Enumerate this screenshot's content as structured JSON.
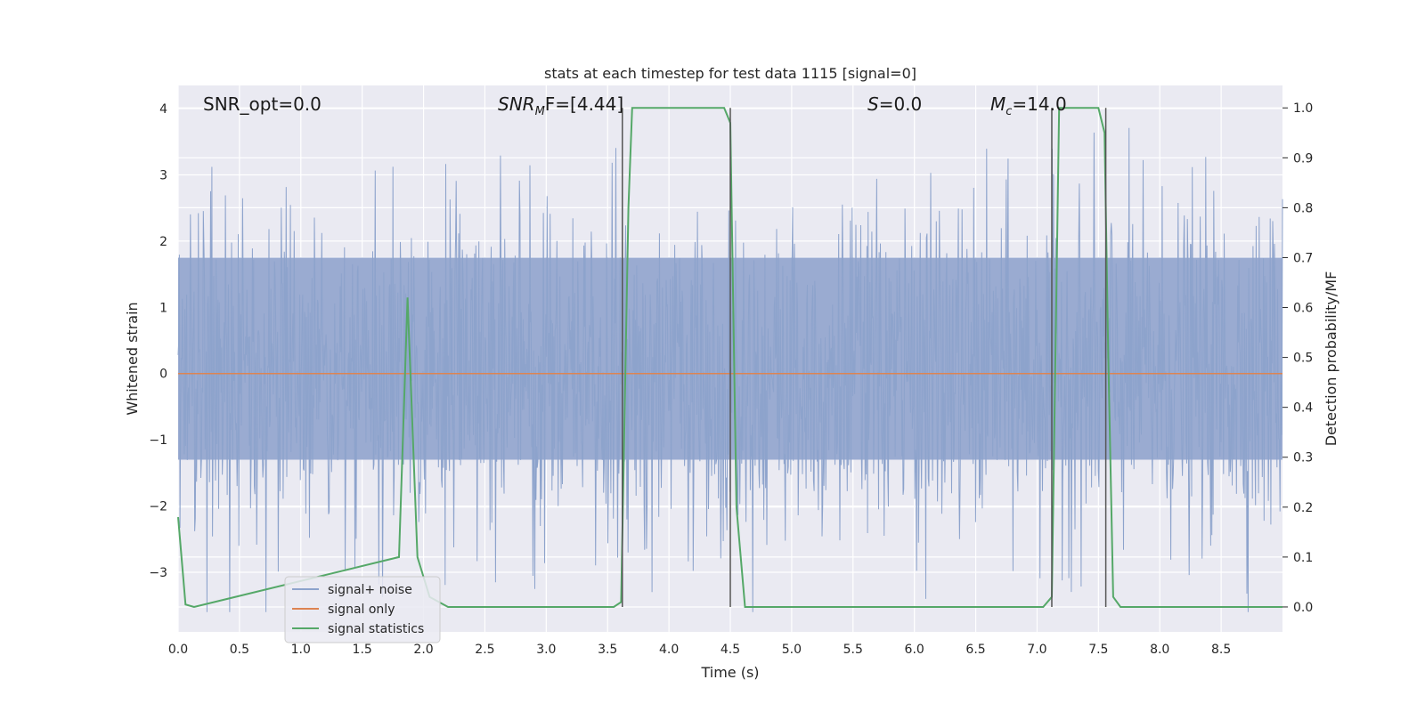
{
  "chart_data": {
    "type": "line",
    "title": "stats at each timestep for test data 1115 [signal=0]",
    "xlabel": "Time (s)",
    "ylabel_left": "Whitened strain",
    "ylabel_right": "Detection probability/MF",
    "xlim": [
      0,
      9.0
    ],
    "ylim_left": [
      -3.9,
      4.35
    ],
    "ylim_right": [
      -0.05,
      1.045
    ],
    "grid": true,
    "legend_position": "lower-left",
    "x_tick_labels": [
      "0.0",
      "0.5",
      "1.0",
      "1.5",
      "2.0",
      "2.5",
      "3.0",
      "3.5",
      "4.0",
      "4.5",
      "5.0",
      "5.5",
      "6.0",
      "6.5",
      "7.0",
      "7.5",
      "8.0",
      "8.5"
    ],
    "y_left_tick_labels": [
      "−3",
      "−2",
      "−1",
      "0",
      "1",
      "2",
      "3",
      "4"
    ],
    "y_right_tick_labels": [
      "0.0",
      "0.1",
      "0.2",
      "0.3",
      "0.4",
      "0.5",
      "0.6",
      "0.7",
      "0.8",
      "0.9",
      "1.0"
    ],
    "annotations": {
      "snr_opt": "SNR_opt=0.0",
      "snr_mf_main": "SNR",
      "snr_mf_sub": "M",
      "snr_mf_rest": "F=[4.44]",
      "s_main": "S",
      "s_rest": "=0.0",
      "mc_main": "M",
      "mc_sub": "c",
      "mc_rest": "=14.0"
    },
    "series": [
      {
        "name": "signal+ noise",
        "color": "#8da3cc",
        "axis": "left",
        "description_level": "noise amplitude approx ±2.4"
      },
      {
        "name": "signal only",
        "color": "#dd8452",
        "axis": "left",
        "x": [
          0,
          9.0
        ],
        "y": [
          0,
          0
        ]
      },
      {
        "name": "signal statistics",
        "color": "#55a868",
        "axis": "right",
        "x": [
          0,
          0.06,
          0.13,
          1.8,
          1.87,
          1.95,
          2.05,
          2.2,
          3.55,
          3.61,
          3.67,
          3.7,
          4.45,
          4.5,
          4.55,
          4.62,
          4.8,
          7.05,
          7.12,
          7.18,
          7.5,
          7.55,
          7.58,
          7.62,
          7.68,
          9.0
        ],
        "y": [
          0.18,
          0.005,
          0.0,
          0.1,
          0.62,
          0.1,
          0.02,
          0.0,
          0.0,
          0.01,
          0.8,
          1.0,
          1.0,
          0.97,
          0.2,
          0.0,
          0.0,
          0.0,
          0.02,
          1.0,
          1.0,
          0.95,
          0.5,
          0.02,
          0.0,
          0.0
        ]
      }
    ],
    "vertical_markers_x": [
      3.62,
      4.5,
      7.12,
      7.56
    ]
  },
  "legend": {
    "items": [
      {
        "label": "signal+ noise",
        "color": "#8da3cc"
      },
      {
        "label": "signal only",
        "color": "#dd8452"
      },
      {
        "label": "signal statistics",
        "color": "#55a868"
      }
    ]
  }
}
